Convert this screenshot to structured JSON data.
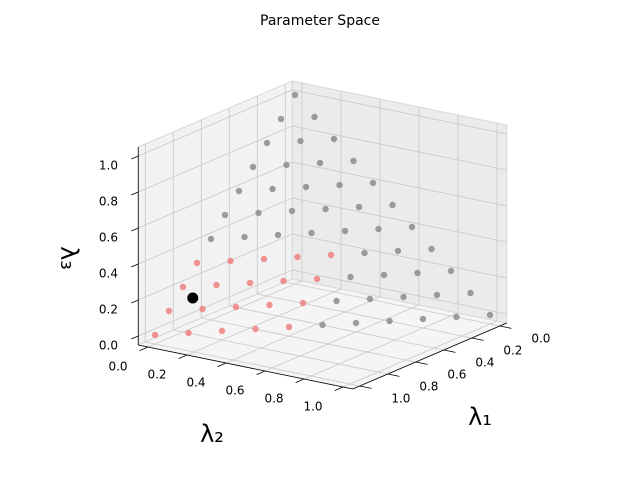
{
  "chart_data": {
    "type": "scatter3d",
    "title": "Parameter Space",
    "xlabel": "λ₁",
    "ylabel": "λ₂",
    "zlabel": "λ₃",
    "xlim": [
      0,
      1
    ],
    "ylim": [
      0,
      1
    ],
    "zlim": [
      0,
      1
    ],
    "xticks": [
      {
        "value": 0,
        "label": "0.0"
      },
      0.2,
      0.4,
      0.6,
      0.8,
      {
        "value": 1,
        "label": "1.0"
      }
    ],
    "yticks": [
      {
        "value": 0,
        "label": "0.0"
      },
      0.2,
      0.4,
      0.6,
      0.8,
      {
        "value": 1,
        "label": "1.0"
      }
    ],
    "zticks": [
      {
        "value": 0,
        "label": "0.0"
      },
      0.2,
      0.4,
      0.6,
      0.8,
      {
        "value": 1,
        "label": "1.0"
      }
    ],
    "grid": true,
    "series": [
      {
        "color": "#8c8c8c",
        "x": [
          0,
          0.1,
          0.2,
          0.3,
          0.4,
          0.5,
          0.6,
          0,
          0.1,
          0.2,
          0.3,
          0.4,
          0.5,
          0,
          0.1,
          0.2,
          0.3,
          0.4,
          0,
          0.1,
          0.2,
          0.3,
          0,
          0.1,
          0.2,
          0,
          0.1,
          0.2,
          0.3,
          0.4,
          0.5,
          0,
          0.1,
          0.2,
          0.3,
          0.4,
          0,
          0.1,
          0.2,
          0.3,
          0,
          0.1,
          0.2,
          0,
          0.1,
          0
        ],
        "y": [
          0,
          0,
          0,
          0,
          0,
          0,
          0,
          0.1,
          0.1,
          0.1,
          0.1,
          0.1,
          0.1,
          0.2,
          0.2,
          0.2,
          0.2,
          0.2,
          0.3,
          0.3,
          0.3,
          0.3,
          0.4,
          0.4,
          0.4,
          0.5,
          0.5,
          0.5,
          0.5,
          0.5,
          0.5,
          0.6,
          0.6,
          0.6,
          0.6,
          0.6,
          0.7,
          0.7,
          0.7,
          0.7,
          0.8,
          0.8,
          0.8,
          0.9,
          0.9,
          1
        ],
        "z": [
          1,
          0.9,
          0.8,
          0.7,
          0.6,
          0.5,
          0.4,
          0.9,
          0.8,
          0.7,
          0.6,
          0.5,
          0.4,
          0.8,
          0.7,
          0.6,
          0.5,
          0.4,
          0.7,
          0.6,
          0.5,
          0.4,
          0.6,
          0.5,
          0.4,
          0.5,
          0.4,
          0.3,
          0.2,
          0.1,
          0,
          0.4,
          0.3,
          0.2,
          0.1,
          0,
          0.3,
          0.2,
          0.1,
          0,
          0.2,
          0.1,
          0,
          0.1,
          0,
          0
        ]
      },
      {
        "color": "#f08080",
        "x": [
          0.7,
          0.8,
          0.9,
          1,
          0.6,
          0.7,
          0.8,
          0.9,
          0.5,
          0.6,
          0.7,
          0.8,
          0.4,
          0.5,
          0.6,
          0.7,
          0.3,
          0.4,
          0.5,
          0.6
        ],
        "y": [
          0,
          0,
          0,
          0,
          0.1,
          0.1,
          0.1,
          0.1,
          0.2,
          0.2,
          0.2,
          0.2,
          0.3,
          0.3,
          0.3,
          0.3,
          0.4,
          0.4,
          0.4,
          0.4
        ],
        "z": [
          0.3,
          0.2,
          0.1,
          0,
          0.3,
          0.2,
          0.1,
          0,
          0.3,
          0.2,
          0.1,
          0,
          0.3,
          0.2,
          0.1,
          0,
          0.3,
          0.2,
          0.1,
          0
        ]
      },
      {
        "color": "#000000",
        "x": [
          0.8
        ],
        "y": [
          0.05
        ],
        "z": [
          0.15
        ]
      }
    ]
  }
}
